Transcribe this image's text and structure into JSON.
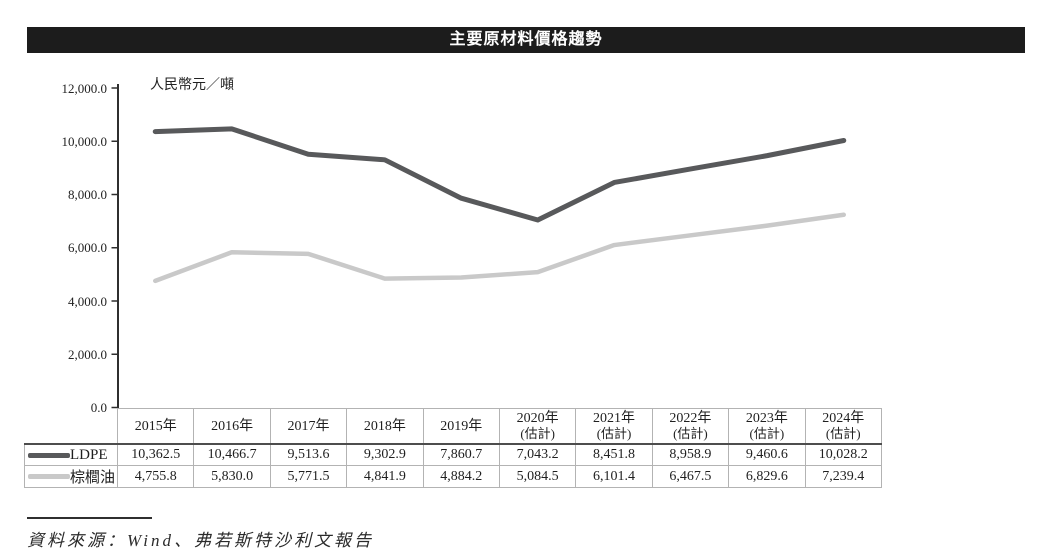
{
  "title_bar": {
    "title": "主要原材料價格趨勢"
  },
  "footer": {
    "source_label": "資料來源：Wind、弗若斯特沙利文報告"
  },
  "chart_data": {
    "type": "line",
    "title": "主要原材料價格趨勢",
    "unit_label": "人民幣元／噸",
    "categories": [
      {
        "label": "2015年",
        "sub": ""
      },
      {
        "label": "2016年",
        "sub": ""
      },
      {
        "label": "2017年",
        "sub": ""
      },
      {
        "label": "2018年",
        "sub": ""
      },
      {
        "label": "2019年",
        "sub": ""
      },
      {
        "label": "2020年",
        "sub": "(估計)"
      },
      {
        "label": "2021年",
        "sub": "(估計)"
      },
      {
        "label": "2022年",
        "sub": "(估計)"
      },
      {
        "label": "2023年",
        "sub": "(估計)"
      },
      {
        "label": "2024年",
        "sub": "(估計)"
      }
    ],
    "series": [
      {
        "name": "LDPE",
        "color": "#58595b",
        "stroke_width": 5,
        "values": [
          10362.5,
          10466.7,
          9513.6,
          9302.9,
          7860.7,
          7043.2,
          8451.8,
          8958.9,
          9460.6,
          10028.2
        ]
      },
      {
        "name": "棕櫚油",
        "color": "#c9c9c9",
        "stroke_width": 4.5,
        "values": [
          4755.8,
          5830.0,
          5771.5,
          4841.9,
          4884.2,
          5084.5,
          6101.4,
          6467.5,
          6829.6,
          7239.4
        ]
      }
    ],
    "ylabel": "",
    "xlabel": "",
    "ylim": [
      0,
      12000
    ],
    "ytick_step": 2000,
    "grid": false,
    "legend_position": "table-left",
    "axis_color": "#2f2f2f"
  }
}
